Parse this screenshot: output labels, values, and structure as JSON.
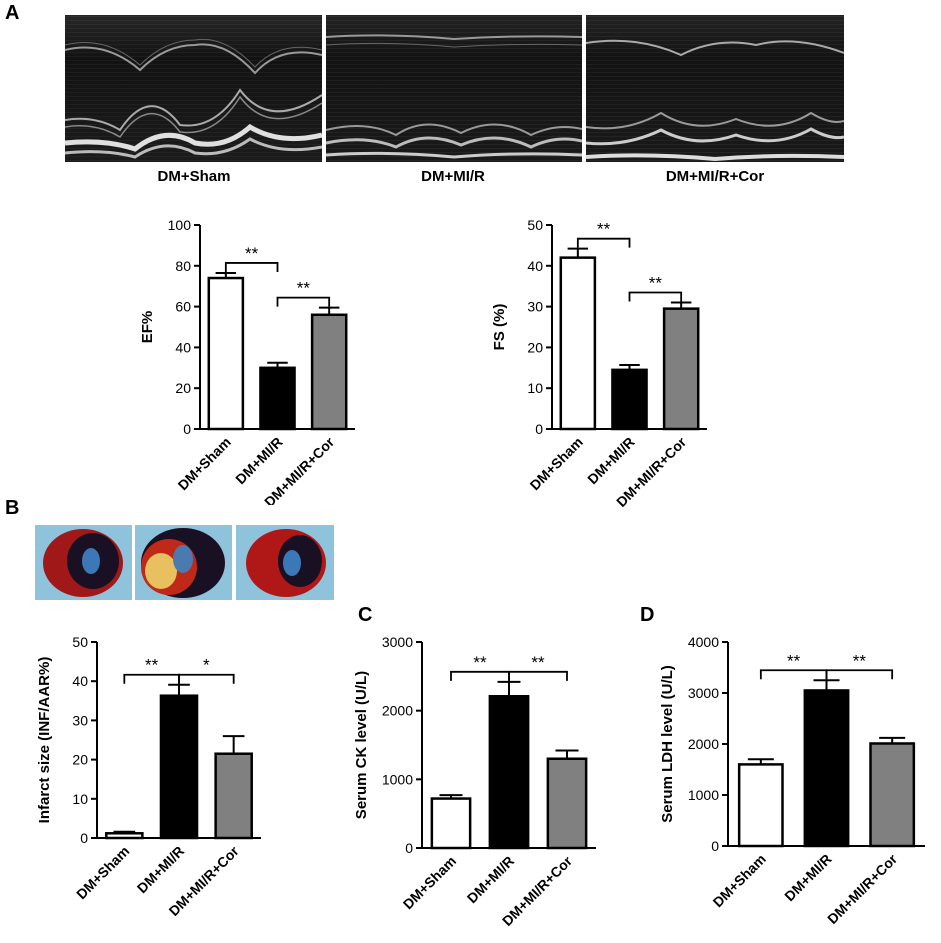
{
  "panel_labels": {
    "a": "A",
    "b": "B",
    "c": "C",
    "d": "D"
  },
  "echo_labels": [
    "DM+Sham",
    "DM+MI/R",
    "DM+MI/R+Cor"
  ],
  "colors": {
    "sham": "#ffffff",
    "mir": "#000000",
    "cor": "#808080",
    "axis": "#000000"
  },
  "chart_data": [
    {
      "id": "ef",
      "type": "bar",
      "categories": [
        "DM+Sham",
        "DM+MI/R",
        "DM+MI/R+Cor"
      ],
      "values": [
        74,
        30,
        56
      ],
      "errors": [
        2.5,
        2.5,
        3.5
      ],
      "ylabel": "EF%",
      "ylim": [
        0,
        100
      ],
      "yticks": [
        0,
        20,
        40,
        60,
        80,
        100
      ],
      "significance": [
        {
          "from": 0,
          "to": 1,
          "label": "**"
        },
        {
          "from": 1,
          "to": 2,
          "label": "**"
        }
      ]
    },
    {
      "id": "fs",
      "type": "bar",
      "categories": [
        "DM+Sham",
        "DM+MI/R",
        "DM+MI/R+Cor"
      ],
      "values": [
        42,
        14.5,
        29.5
      ],
      "errors": [
        2.2,
        1.2,
        1.5
      ],
      "ylabel": "FS (%)",
      "ylim": [
        0,
        50
      ],
      "yticks": [
        0,
        10,
        20,
        30,
        40,
        50
      ],
      "significance": [
        {
          "from": 0,
          "to": 1,
          "label": "**"
        },
        {
          "from": 1,
          "to": 2,
          "label": "**"
        }
      ]
    },
    {
      "id": "infarct",
      "type": "bar",
      "categories": [
        "DM+Sham",
        "DM+MI/R",
        "DM+MI/R+Cor"
      ],
      "values": [
        1.2,
        36.3,
        21.5
      ],
      "errors": [
        0.4,
        2.8,
        4.5
      ],
      "ylabel": "Infarct size (INF/AAR%)",
      "ylim": [
        0,
        50
      ],
      "yticks": [
        0,
        10,
        20,
        30,
        40,
        50
      ],
      "significance": [
        {
          "from": 0,
          "to": 1,
          "label": "**"
        },
        {
          "from": 1,
          "to": 2,
          "label": "*"
        }
      ]
    },
    {
      "id": "ck",
      "type": "bar",
      "categories": [
        "DM+Sham",
        "DM+MI/R",
        "DM+MI/R+Cor"
      ],
      "values": [
        720,
        2210,
        1300
      ],
      "errors": [
        50,
        210,
        120
      ],
      "ylabel": "Serum CK level (U/L)",
      "ylim": [
        0,
        3000
      ],
      "yticks": [
        0,
        1000,
        2000,
        3000
      ],
      "significance": [
        {
          "from": 0,
          "to": 1,
          "label": "**"
        },
        {
          "from": 1,
          "to": 2,
          "label": "**"
        }
      ]
    },
    {
      "id": "ldh",
      "type": "bar",
      "categories": [
        "DM+Sham",
        "DM+MI/R",
        "DM+MI/R+Cor"
      ],
      "values": [
        1600,
        3050,
        2010
      ],
      "errors": [
        100,
        200,
        110
      ],
      "ylabel": "Serum LDH level (U/L)",
      "ylim": [
        0,
        4000
      ],
      "yticks": [
        0,
        1000,
        2000,
        3000,
        4000
      ],
      "significance": [
        {
          "from": 0,
          "to": 1,
          "label": "**"
        },
        {
          "from": 1,
          "to": 2,
          "label": "**"
        }
      ]
    }
  ]
}
